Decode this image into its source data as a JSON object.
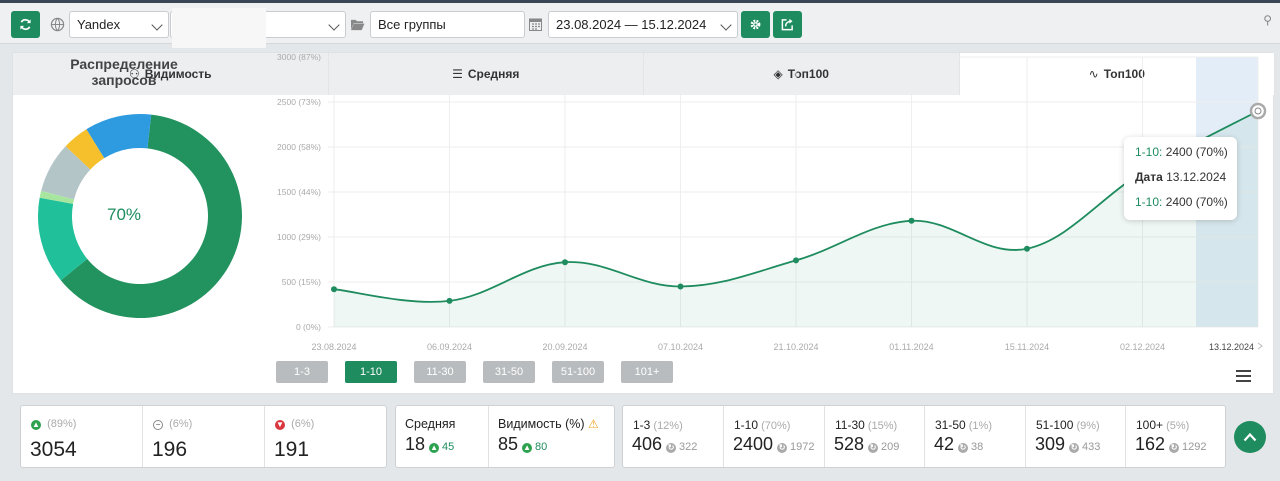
{
  "toolbar": {
    "search_engine": "Yandex",
    "group": "Все группы",
    "date_range": "23.08.2024 — 15.12.2024"
  },
  "tabs": [
    {
      "label": "Видимость",
      "icon": "glasses-icon"
    },
    {
      "label": "Средняя",
      "icon": "list-icon"
    },
    {
      "label": "Топ100",
      "icon": "layers-icon"
    },
    {
      "label": "Топ100",
      "icon": "line-chart-icon"
    }
  ],
  "donut": {
    "title": "Распределение запросов",
    "center_label": "70%",
    "segments": [
      {
        "name": "1-10",
        "value": 2400,
        "color": "#22925f"
      },
      {
        "name": "11-30",
        "value": 528,
        "color": "#20c09a"
      },
      {
        "name": "31-50",
        "value": 42,
        "color": "#a8e6a0"
      },
      {
        "name": "51-100",
        "value": 309,
        "color": "#b4c5c8"
      },
      {
        "name": "100+",
        "value": 162,
        "color": "#f5c02c"
      },
      {
        "name": "1-3",
        "value": 406,
        "color": "#2e9be0"
      }
    ]
  },
  "chart_data": {
    "type": "area",
    "x": [
      "23.08.2024",
      "06.09.2024",
      "20.09.2024",
      "07.10.2024",
      "21.10.2024",
      "01.11.2024",
      "15.11.2024",
      "02.12.2024",
      "13.12.2024"
    ],
    "series": [
      {
        "name": "1-10",
        "values": [
          420,
          290,
          720,
          450,
          740,
          1180,
          870,
          1720,
          2400
        ],
        "color": "#1e8c5e"
      }
    ],
    "y_ticks": [
      "0 (0%)",
      "500 (15%)",
      "1000 (29%)",
      "1500 (44%)",
      "2000 (58%)",
      "2500 (73%)",
      "3000 (87%)"
    ],
    "ylim": [
      0,
      3000
    ],
    "grid": true
  },
  "tooltip": {
    "line1_label": "1-10:",
    "line1_value": "2400 (70%)",
    "date_label": "Дата",
    "date_value": "13.12.2024",
    "line3_label": "1-10:",
    "line3_value": "2400 (70%)"
  },
  "range_buttons": [
    {
      "label": "1-3",
      "active": false
    },
    {
      "label": "1-10",
      "active": true
    },
    {
      "label": "11-30",
      "active": false
    },
    {
      "label": "31-50",
      "active": false
    },
    {
      "label": "51-100",
      "active": false
    },
    {
      "label": "101+",
      "active": false
    }
  ],
  "stats_changes": [
    {
      "pct": "(89%)",
      "value": "3054",
      "icon": "up-circle-icon",
      "color": "#2ca14e"
    },
    {
      "pct": "(6%)",
      "value": "196",
      "icon": "neutral-circle-icon",
      "color": "#888888"
    },
    {
      "pct": "(6%)",
      "value": "191",
      "icon": "down-circle-icon",
      "color": "#d9363e"
    }
  ],
  "stats_avg": {
    "avg_label": "Средняя",
    "avg_value": "18",
    "avg_delta": "45",
    "vis_label": "Видимость (%)",
    "vis_value": "85",
    "vis_delta": "80"
  },
  "stats_ranges": [
    {
      "label": "1-3",
      "pct": "(12%)",
      "value": "406",
      "prev": "322"
    },
    {
      "label": "1-10",
      "pct": "(70%)",
      "value": "2400",
      "prev": "1972"
    },
    {
      "label": "11-30",
      "pct": "(15%)",
      "value": "528",
      "prev": "209"
    },
    {
      "label": "31-50",
      "pct": "(1%)",
      "value": "42",
      "prev": "38"
    },
    {
      "label": "51-100",
      "pct": "(9%)",
      "value": "309",
      "prev": "433"
    },
    {
      "label": "100+",
      "pct": "(5%)",
      "value": "162",
      "prev": "1292"
    }
  ]
}
